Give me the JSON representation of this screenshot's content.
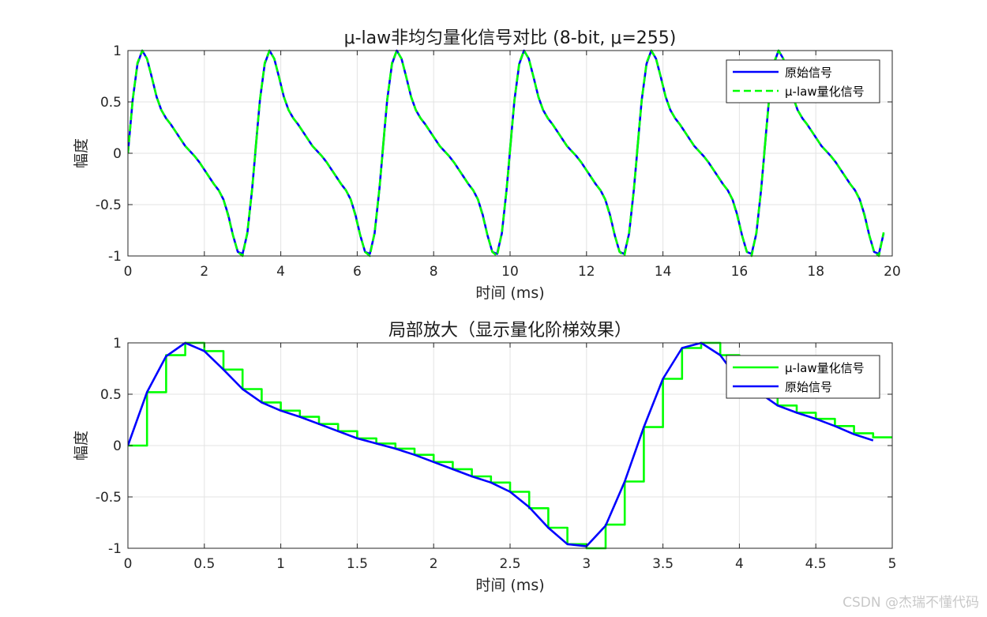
{
  "watermark": "CSDN @杰瑞不懂代码",
  "chart_data": [
    {
      "type": "line",
      "title": "μ-law非均匀量化信号对比 (8-bit, μ=255)",
      "xlabel": "时间 (ms)",
      "ylabel": "幅度",
      "xlim": [
        0,
        20
      ],
      "ylim": [
        -1,
        1
      ],
      "xticks": [
        0,
        2,
        4,
        6,
        8,
        10,
        12,
        14,
        16,
        18,
        20
      ],
      "xtick_labels": [
        "0",
        "2",
        "4",
        "6",
        "8",
        "10",
        "12",
        "14",
        "16",
        "18",
        "20"
      ],
      "yticks": [
        -1,
        -0.5,
        0,
        0.5,
        1
      ],
      "ytick_labels": [
        "-1",
        "-0.5",
        "0",
        "0.5",
        "1"
      ],
      "grid": true,
      "legend_position": "top-right",
      "period_ms": 3.33,
      "series": [
        {
          "name": "原始信号",
          "color": "#0000ff",
          "style": "solid",
          "x": [
            0,
            0.125,
            0.25,
            0.375,
            0.5,
            0.625,
            0.75,
            0.875,
            1.0,
            1.125,
            1.25,
            1.375,
            1.5,
            1.625,
            1.75,
            1.875,
            2.0,
            2.125,
            2.25,
            2.375,
            2.5,
            2.625,
            2.75,
            2.875,
            3.0,
            3.125,
            3.25,
            3.375
          ],
          "y": [
            0,
            0.52,
            0.87,
            1.0,
            0.92,
            0.74,
            0.55,
            0.42,
            0.34,
            0.28,
            0.21,
            0.14,
            0.07,
            0.02,
            -0.03,
            -0.09,
            -0.16,
            -0.23,
            -0.3,
            -0.36,
            -0.45,
            -0.6,
            -0.8,
            -0.96,
            -0.98,
            -0.78,
            -0.35,
            0.18
          ]
        },
        {
          "name": "μ-law量化信号",
          "color": "#00ff00",
          "style": "dashed",
          "x": [
            0,
            0.125,
            0.25,
            0.375,
            0.5,
            0.625,
            0.75,
            0.875,
            1.0,
            1.125,
            1.25,
            1.375,
            1.5,
            1.625,
            1.75,
            1.875,
            2.0,
            2.125,
            2.25,
            2.375,
            2.5,
            2.625,
            2.75,
            2.875,
            3.0,
            3.125,
            3.25,
            3.375
          ],
          "y": [
            0,
            0.52,
            0.88,
            1.0,
            0.92,
            0.74,
            0.55,
            0.42,
            0.34,
            0.28,
            0.21,
            0.14,
            0.07,
            0.02,
            -0.03,
            -0.09,
            -0.16,
            -0.23,
            -0.3,
            -0.36,
            -0.45,
            -0.61,
            -0.8,
            -0.96,
            -1.0,
            -0.77,
            -0.35,
            0.18
          ]
        }
      ]
    },
    {
      "type": "line",
      "title": "局部放大（显示量化阶梯效果）",
      "xlabel": "时间 (ms)",
      "ylabel": "幅度",
      "xlim": [
        0,
        5
      ],
      "ylim": [
        -1,
        1
      ],
      "xticks": [
        0,
        0.5,
        1,
        1.5,
        2,
        2.5,
        3,
        3.5,
        4,
        4.5,
        5
      ],
      "xtick_labels": [
        "0",
        "0.5",
        "1",
        "1.5",
        "2",
        "2.5",
        "3",
        "3.5",
        "4",
        "4.5",
        "5"
      ],
      "yticks": [
        -1,
        -0.5,
        0,
        0.5,
        1
      ],
      "ytick_labels": [
        "-1",
        "-0.5",
        "0",
        "0.5",
        "1"
      ],
      "grid": true,
      "legend_position": "top-right",
      "series": [
        {
          "name": "μ-law量化信号",
          "color": "#00ff00",
          "style": "stairs",
          "x": [
            0,
            0.125,
            0.25,
            0.375,
            0.5,
            0.625,
            0.75,
            0.875,
            1.0,
            1.125,
            1.25,
            1.375,
            1.5,
            1.625,
            1.75,
            1.875,
            2.0,
            2.125,
            2.25,
            2.375,
            2.5,
            2.625,
            2.75,
            2.875,
            3.0,
            3.125,
            3.25,
            3.375,
            3.5,
            3.625,
            3.75,
            3.875,
            4.0,
            4.125,
            4.25,
            4.375,
            4.5,
            4.625,
            4.75,
            4.875
          ],
          "y": [
            0,
            0.52,
            0.88,
            1.0,
            0.92,
            0.74,
            0.55,
            0.42,
            0.34,
            0.28,
            0.21,
            0.14,
            0.07,
            0.02,
            -0.03,
            -0.09,
            -0.16,
            -0.23,
            -0.3,
            -0.36,
            -0.45,
            -0.61,
            -0.8,
            -0.96,
            -1.0,
            -0.77,
            -0.35,
            0.18,
            0.65,
            0.95,
            1.0,
            0.88,
            0.63,
            0.52,
            0.39,
            0.32,
            0.26,
            0.19,
            0.12,
            0.08
          ]
        },
        {
          "name": "原始信号",
          "color": "#0000ff",
          "style": "solid",
          "x": [
            0,
            0.125,
            0.25,
            0.375,
            0.5,
            0.625,
            0.75,
            0.875,
            1.0,
            1.125,
            1.25,
            1.375,
            1.5,
            1.625,
            1.75,
            1.875,
            2.0,
            2.125,
            2.25,
            2.375,
            2.5,
            2.625,
            2.75,
            2.875,
            3.0,
            3.125,
            3.25,
            3.375,
            3.5,
            3.625,
            3.75,
            3.875,
            4.0,
            4.125,
            4.25,
            4.375,
            4.5,
            4.625,
            4.75,
            4.875
          ],
          "y": [
            0,
            0.52,
            0.87,
            1.0,
            0.92,
            0.74,
            0.55,
            0.42,
            0.34,
            0.28,
            0.21,
            0.14,
            0.07,
            0.02,
            -0.03,
            -0.09,
            -0.16,
            -0.23,
            -0.3,
            -0.36,
            -0.45,
            -0.6,
            -0.8,
            -0.96,
            -0.98,
            -0.78,
            -0.35,
            0.18,
            0.65,
            0.95,
            1.0,
            0.88,
            0.63,
            0.52,
            0.39,
            0.32,
            0.26,
            0.19,
            0.11,
            0.05
          ]
        }
      ]
    }
  ]
}
